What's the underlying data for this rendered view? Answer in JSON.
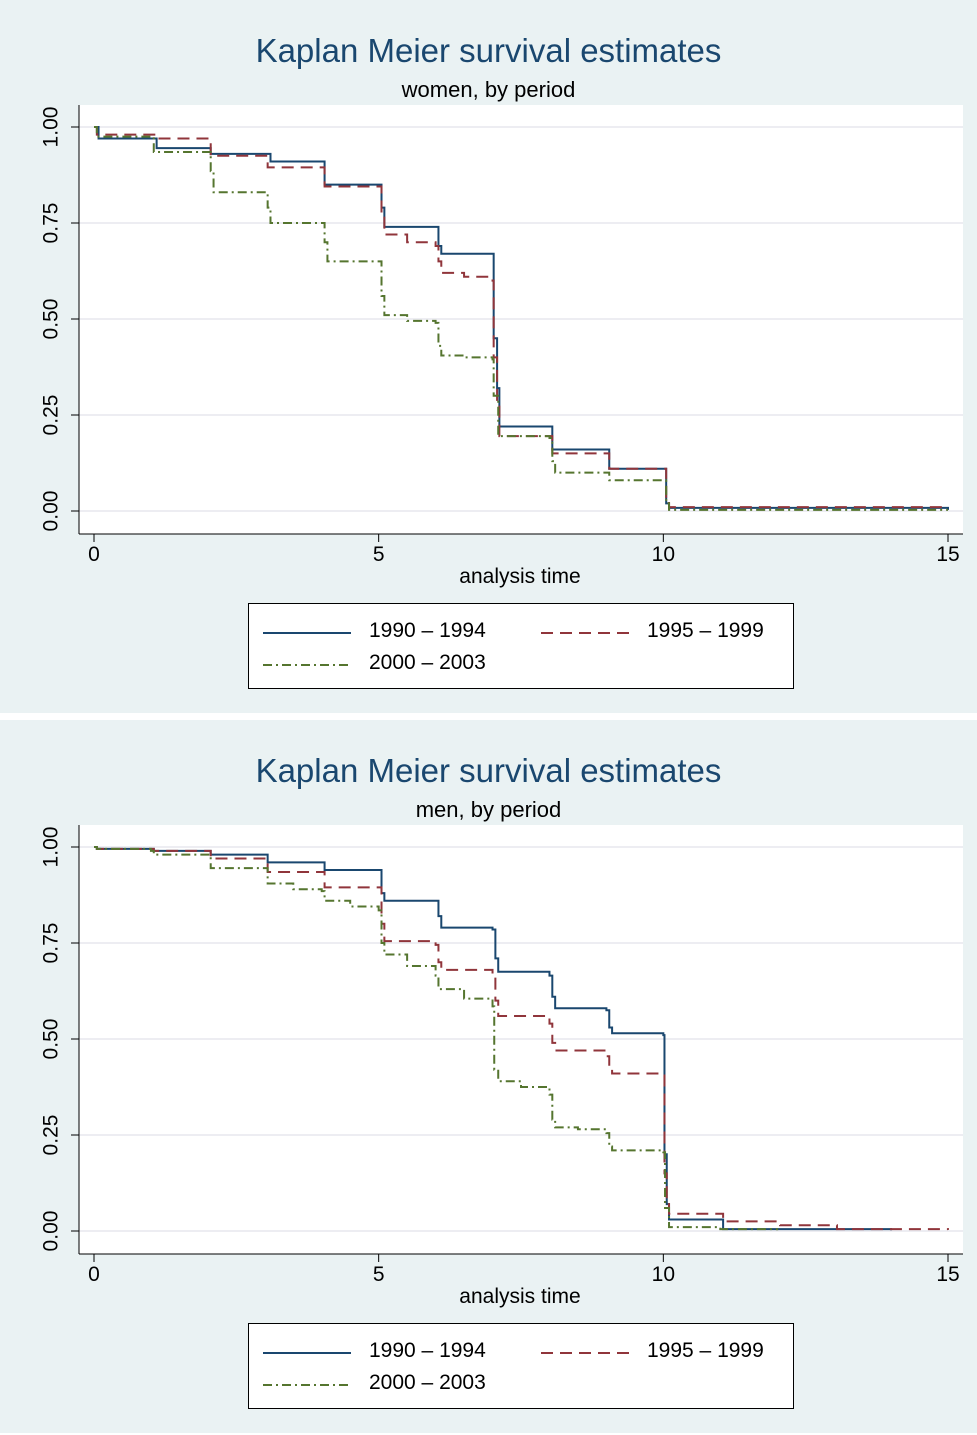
{
  "chart_data": [
    {
      "type": "line",
      "step": true,
      "title": "Kaplan Meier survival estimates",
      "subtitle": "women, by period",
      "xlabel": "analysis time",
      "ylabel": "",
      "xlim": [
        0,
        15
      ],
      "ylim": [
        0,
        1
      ],
      "xticks": [
        "0",
        "5",
        "10",
        "15"
      ],
      "yticks": [
        "0.00",
        "0.25",
        "0.50",
        "0.75",
        "1.00"
      ],
      "grid": true,
      "legend_position": "bottom",
      "series": [
        {
          "name": "1990 – 1994",
          "color": "#1a476f",
          "dash": "solid",
          "points": [
            [
              0,
              1.0
            ],
            [
              0.08,
              0.97
            ],
            [
              1.05,
              0.97
            ],
            [
              1.1,
              0.945
            ],
            [
              2.0,
              0.945
            ],
            [
              2.05,
              0.93
            ],
            [
              3.05,
              0.93
            ],
            [
              3.1,
              0.91
            ],
            [
              4.0,
              0.91
            ],
            [
              4.05,
              0.85
            ],
            [
              5.0,
              0.85
            ],
            [
              5.05,
              0.79
            ],
            [
              5.1,
              0.74
            ],
            [
              6.0,
              0.74
            ],
            [
              6.05,
              0.69
            ],
            [
              6.1,
              0.67
            ],
            [
              7.0,
              0.67
            ],
            [
              7.02,
              0.45
            ],
            [
              7.08,
              0.32
            ],
            [
              7.12,
              0.22
            ],
            [
              8.0,
              0.22
            ],
            [
              8.05,
              0.16
            ],
            [
              9.0,
              0.16
            ],
            [
              9.05,
              0.11
            ],
            [
              10.0,
              0.11
            ],
            [
              10.05,
              0.02
            ],
            [
              10.1,
              0.008
            ],
            [
              15.0,
              0.003
            ]
          ]
        },
        {
          "name": "1995 – 1999",
          "color": "#90353b",
          "dash": "dash",
          "points": [
            [
              0,
              1.0
            ],
            [
              0.05,
              0.98
            ],
            [
              1.05,
              0.98
            ],
            [
              1.1,
              0.97
            ],
            [
              2.0,
              0.97
            ],
            [
              2.05,
              0.925
            ],
            [
              3.0,
              0.925
            ],
            [
              3.05,
              0.895
            ],
            [
              4.0,
              0.895
            ],
            [
              4.05,
              0.845
            ],
            [
              5.0,
              0.845
            ],
            [
              5.05,
              0.77
            ],
            [
              5.1,
              0.72
            ],
            [
              5.5,
              0.7
            ],
            [
              6.0,
              0.69
            ],
            [
              6.05,
              0.65
            ],
            [
              6.1,
              0.62
            ],
            [
              6.5,
              0.61
            ],
            [
              7.0,
              0.6
            ],
            [
              7.02,
              0.4
            ],
            [
              7.08,
              0.28
            ],
            [
              7.12,
              0.195
            ],
            [
              8.0,
              0.195
            ],
            [
              8.05,
              0.15
            ],
            [
              9.0,
              0.15
            ],
            [
              9.05,
              0.11
            ],
            [
              10.0,
              0.11
            ],
            [
              10.05,
              0.03
            ],
            [
              10.1,
              0.01
            ],
            [
              15.0,
              0.01
            ]
          ]
        },
        {
          "name": "2000 – 2003",
          "color": "#55752f",
          "dash": "dashdot",
          "points": [
            [
              0,
              1.0
            ],
            [
              0.05,
              0.975
            ],
            [
              1.0,
              0.975
            ],
            [
              1.05,
              0.935
            ],
            [
              2.0,
              0.935
            ],
            [
              2.05,
              0.885
            ],
            [
              2.1,
              0.83
            ],
            [
              3.0,
              0.83
            ],
            [
              3.05,
              0.79
            ],
            [
              3.1,
              0.75
            ],
            [
              4.0,
              0.75
            ],
            [
              4.05,
              0.7
            ],
            [
              4.1,
              0.65
            ],
            [
              5.0,
              0.65
            ],
            [
              5.05,
              0.56
            ],
            [
              5.1,
              0.51
            ],
            [
              5.5,
              0.495
            ],
            [
              6.0,
              0.49
            ],
            [
              6.05,
              0.43
            ],
            [
              6.1,
              0.405
            ],
            [
              6.5,
              0.4
            ],
            [
              7.0,
              0.395
            ],
            [
              7.02,
              0.3
            ],
            [
              7.1,
              0.195
            ],
            [
              8.0,
              0.19
            ],
            [
              8.05,
              0.13
            ],
            [
              8.1,
              0.1
            ],
            [
              9.0,
              0.1
            ],
            [
              9.05,
              0.08
            ],
            [
              10.0,
              0.08
            ],
            [
              10.05,
              0.02
            ],
            [
              10.1,
              0.003
            ],
            [
              15.0,
              0.003
            ]
          ]
        }
      ]
    },
    {
      "type": "line",
      "step": true,
      "title": "Kaplan Meier survival estimates",
      "subtitle": "men, by period",
      "xlabel": "analysis time",
      "ylabel": "",
      "xlim": [
        0,
        15
      ],
      "ylim": [
        0,
        1
      ],
      "xticks": [
        "0",
        "5",
        "10",
        "15"
      ],
      "yticks": [
        "0.00",
        "0.25",
        "0.50",
        "0.75",
        "1.00"
      ],
      "grid": true,
      "legend_position": "bottom",
      "series": [
        {
          "name": "1990 – 1994",
          "color": "#1a476f",
          "dash": "solid",
          "points": [
            [
              0,
              1.0
            ],
            [
              0.05,
              0.995
            ],
            [
              1.0,
              0.995
            ],
            [
              1.05,
              0.99
            ],
            [
              2.0,
              0.99
            ],
            [
              2.05,
              0.98
            ],
            [
              3.0,
              0.98
            ],
            [
              3.05,
              0.96
            ],
            [
              4.0,
              0.96
            ],
            [
              4.05,
              0.94
            ],
            [
              5.0,
              0.94
            ],
            [
              5.05,
              0.88
            ],
            [
              5.1,
              0.86
            ],
            [
              6.0,
              0.86
            ],
            [
              6.05,
              0.82
            ],
            [
              6.1,
              0.79
            ],
            [
              7.0,
              0.785
            ],
            [
              7.05,
              0.71
            ],
            [
              7.1,
              0.675
            ],
            [
              8.0,
              0.665
            ],
            [
              8.05,
              0.61
            ],
            [
              8.1,
              0.58
            ],
            [
              9.0,
              0.575
            ],
            [
              9.05,
              0.53
            ],
            [
              9.1,
              0.515
            ],
            [
              10.0,
              0.51
            ],
            [
              10.02,
              0.2
            ],
            [
              10.06,
              0.07
            ],
            [
              10.1,
              0.03
            ],
            [
              11.0,
              0.03
            ],
            [
              11.05,
              0.005
            ],
            [
              14.0,
              0.002
            ]
          ]
        },
        {
          "name": "1995 – 1999",
          "color": "#90353b",
          "dash": "dash",
          "points": [
            [
              0,
              1.0
            ],
            [
              0.05,
              0.995
            ],
            [
              1.0,
              0.995
            ],
            [
              1.05,
              0.99
            ],
            [
              2.0,
              0.99
            ],
            [
              2.05,
              0.97
            ],
            [
              3.0,
              0.97
            ],
            [
              3.05,
              0.935
            ],
            [
              4.0,
              0.935
            ],
            [
              4.05,
              0.895
            ],
            [
              5.0,
              0.895
            ],
            [
              5.05,
              0.8
            ],
            [
              5.1,
              0.755
            ],
            [
              6.0,
              0.745
            ],
            [
              6.05,
              0.7
            ],
            [
              6.1,
              0.68
            ],
            [
              7.0,
              0.665
            ],
            [
              7.05,
              0.6
            ],
            [
              7.1,
              0.56
            ],
            [
              8.0,
              0.54
            ],
            [
              8.05,
              0.49
            ],
            [
              8.1,
              0.47
            ],
            [
              9.0,
              0.455
            ],
            [
              9.05,
              0.42
            ],
            [
              9.1,
              0.41
            ],
            [
              10.0,
              0.405
            ],
            [
              10.02,
              0.15
            ],
            [
              10.06,
              0.07
            ],
            [
              10.1,
              0.045
            ],
            [
              11.0,
              0.045
            ],
            [
              11.05,
              0.025
            ],
            [
              12.0,
              0.025
            ],
            [
              12.05,
              0.015
            ],
            [
              13.0,
              0.015
            ],
            [
              13.05,
              0.005
            ],
            [
              15.0,
              0.003
            ]
          ]
        },
        {
          "name": "2000 – 2003",
          "color": "#55752f",
          "dash": "dashdot",
          "points": [
            [
              0,
              1.0
            ],
            [
              0.05,
              0.995
            ],
            [
              1.0,
              0.99
            ],
            [
              1.05,
              0.98
            ],
            [
              2.0,
              0.98
            ],
            [
              2.05,
              0.945
            ],
            [
              3.0,
              0.945
            ],
            [
              3.05,
              0.905
            ],
            [
              3.5,
              0.89
            ],
            [
              4.0,
              0.885
            ],
            [
              4.05,
              0.86
            ],
            [
              4.5,
              0.845
            ],
            [
              5.0,
              0.835
            ],
            [
              5.05,
              0.75
            ],
            [
              5.1,
              0.72
            ],
            [
              5.5,
              0.69
            ],
            [
              6.0,
              0.665
            ],
            [
              6.05,
              0.63
            ],
            [
              6.5,
              0.605
            ],
            [
              7.0,
              0.585
            ],
            [
              7.03,
              0.42
            ],
            [
              7.1,
              0.39
            ],
            [
              7.5,
              0.375
            ],
            [
              8.0,
              0.355
            ],
            [
              8.05,
              0.29
            ],
            [
              8.1,
              0.27
            ],
            [
              8.5,
              0.265
            ],
            [
              9.0,
              0.255
            ],
            [
              9.05,
              0.22
            ],
            [
              9.1,
              0.21
            ],
            [
              10.0,
              0.205
            ],
            [
              10.03,
              0.06
            ],
            [
              10.1,
              0.01
            ],
            [
              11.0,
              0.005
            ],
            [
              12.0,
              0.002
            ]
          ]
        }
      ]
    }
  ]
}
